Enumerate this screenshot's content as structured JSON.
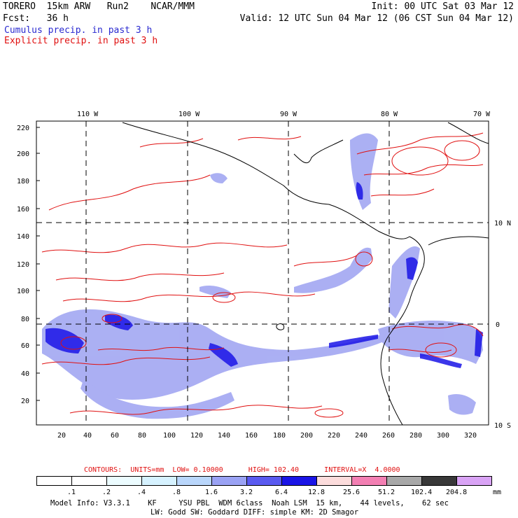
{
  "header": {
    "model": "TORERO  15km ARW   Run2    NCAR/MMM",
    "init": "Init: 00 UTC Sat 03 Mar 12",
    "fcst": "Fcst:   36 h",
    "valid": "Valid: 12 UTC Sun 04 Mar 12 (06 CST Sun 04 Mar 12)",
    "line1": "Cumulus precip. in past 3 h",
    "line2": "Explicit precip. in past 3 h",
    "line1_color": "#2a2ad0",
    "line2_color": "#e01010"
  },
  "axes": {
    "top_labels": [
      "110 W",
      "100 W",
      "90 W",
      "80 W",
      "70 W"
    ],
    "right_labels": [
      "10 N",
      "0",
      "10 S"
    ],
    "left_labels": [
      "220",
      "200",
      "180",
      "160",
      "140",
      "120",
      "100",
      "80",
      "60",
      "40",
      "20"
    ],
    "bottom_labels": [
      "20",
      "40",
      "60",
      "80",
      "100",
      "120",
      "140",
      "160",
      "180",
      "200",
      "220",
      "240",
      "260",
      "280",
      "300",
      "320"
    ]
  },
  "contours_note": {
    "text": "CONTOURS:  UNITS=mm  LOW= 0.10000      HIGH= 102.40      INTERVAL=X  4.0000",
    "color": "#e01010"
  },
  "legend": {
    "unit": "mm",
    "labels": [
      ".1",
      ".2",
      ".4",
      ".8",
      "1.6",
      "3.2",
      "6.4",
      "12.8",
      "25.6",
      "51.2",
      "102.4",
      "204.8"
    ],
    "colors": [
      "#ffffff",
      "#ffffff",
      "#ecfcff",
      "#d6f2ff",
      "#b9d6fb",
      "#9aa2f4",
      "#5a5af0",
      "#1a14e6",
      "#fcdcdc",
      "#f37fb3",
      "#a8a8a8",
      "#383838",
      "#d9a3f5"
    ]
  },
  "footer": {
    "line1": "Model Info: V3.3.1    KF     YSU PBL  WDM 6class  Noah LSM  15 km,    44 levels,    62 sec",
    "line2": "LW: Godd SW: Goddard DIFF: simple KM: 2D Smagor"
  }
}
